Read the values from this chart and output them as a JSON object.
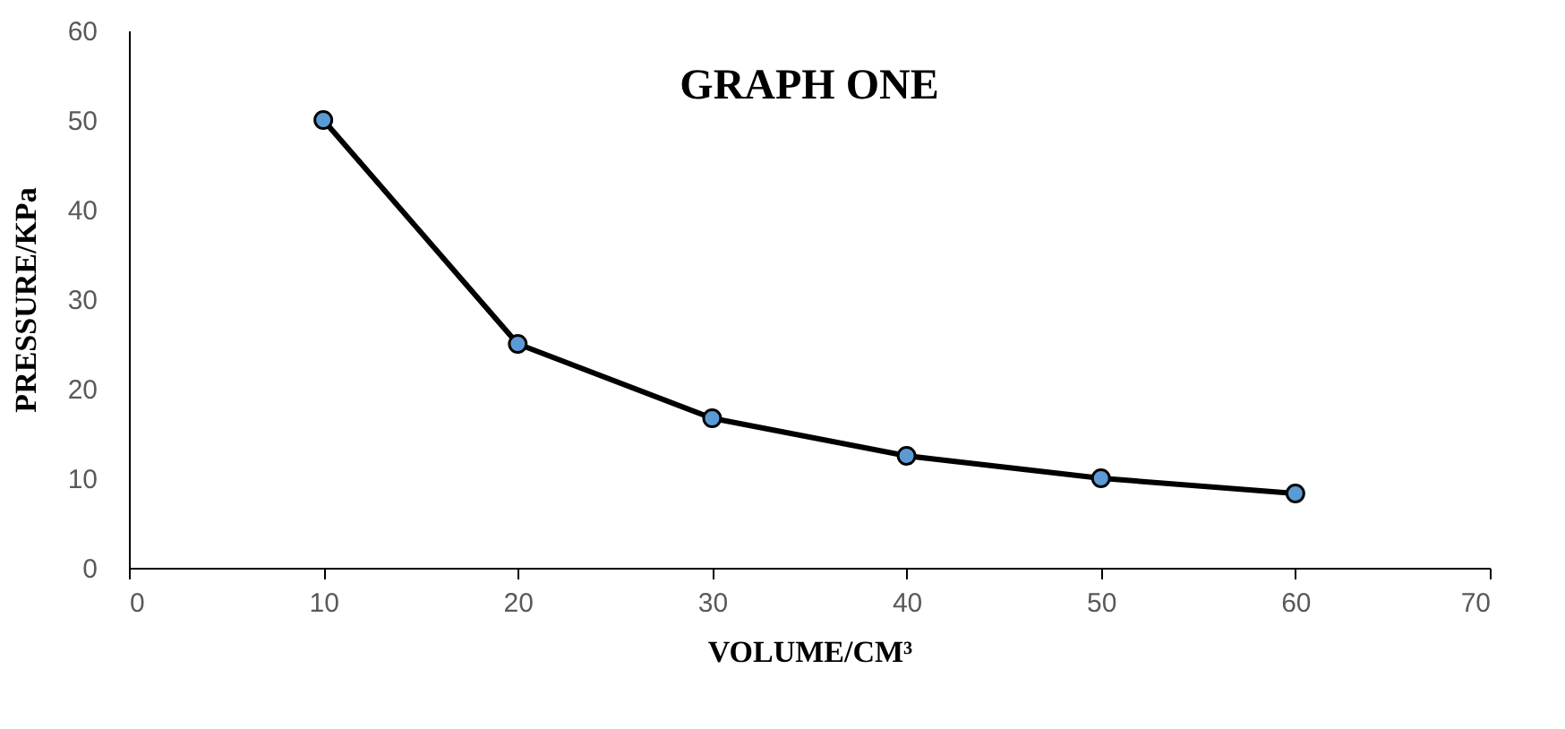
{
  "chart_data": {
    "type": "line",
    "title": "GRAPH ONE",
    "xlabel": "VOLUME/CM³",
    "ylabel": "PRESSURE/KPa",
    "x": [
      10,
      20,
      30,
      40,
      50,
      60
    ],
    "series": [
      {
        "color": "#000000",
        "values": [
          50,
          25,
          16.7,
          12.5,
          10,
          8.3
        ]
      }
    ],
    "marker": "circle",
    "line_style": "solid",
    "xlim": [
      0,
      70
    ],
    "xticks": [
      0,
      10,
      20,
      30,
      40,
      50,
      60,
      70
    ],
    "ylim": [
      0,
      60
    ],
    "yticks": [
      0,
      10,
      20,
      30,
      40,
      50,
      60
    ],
    "grid": false
  }
}
